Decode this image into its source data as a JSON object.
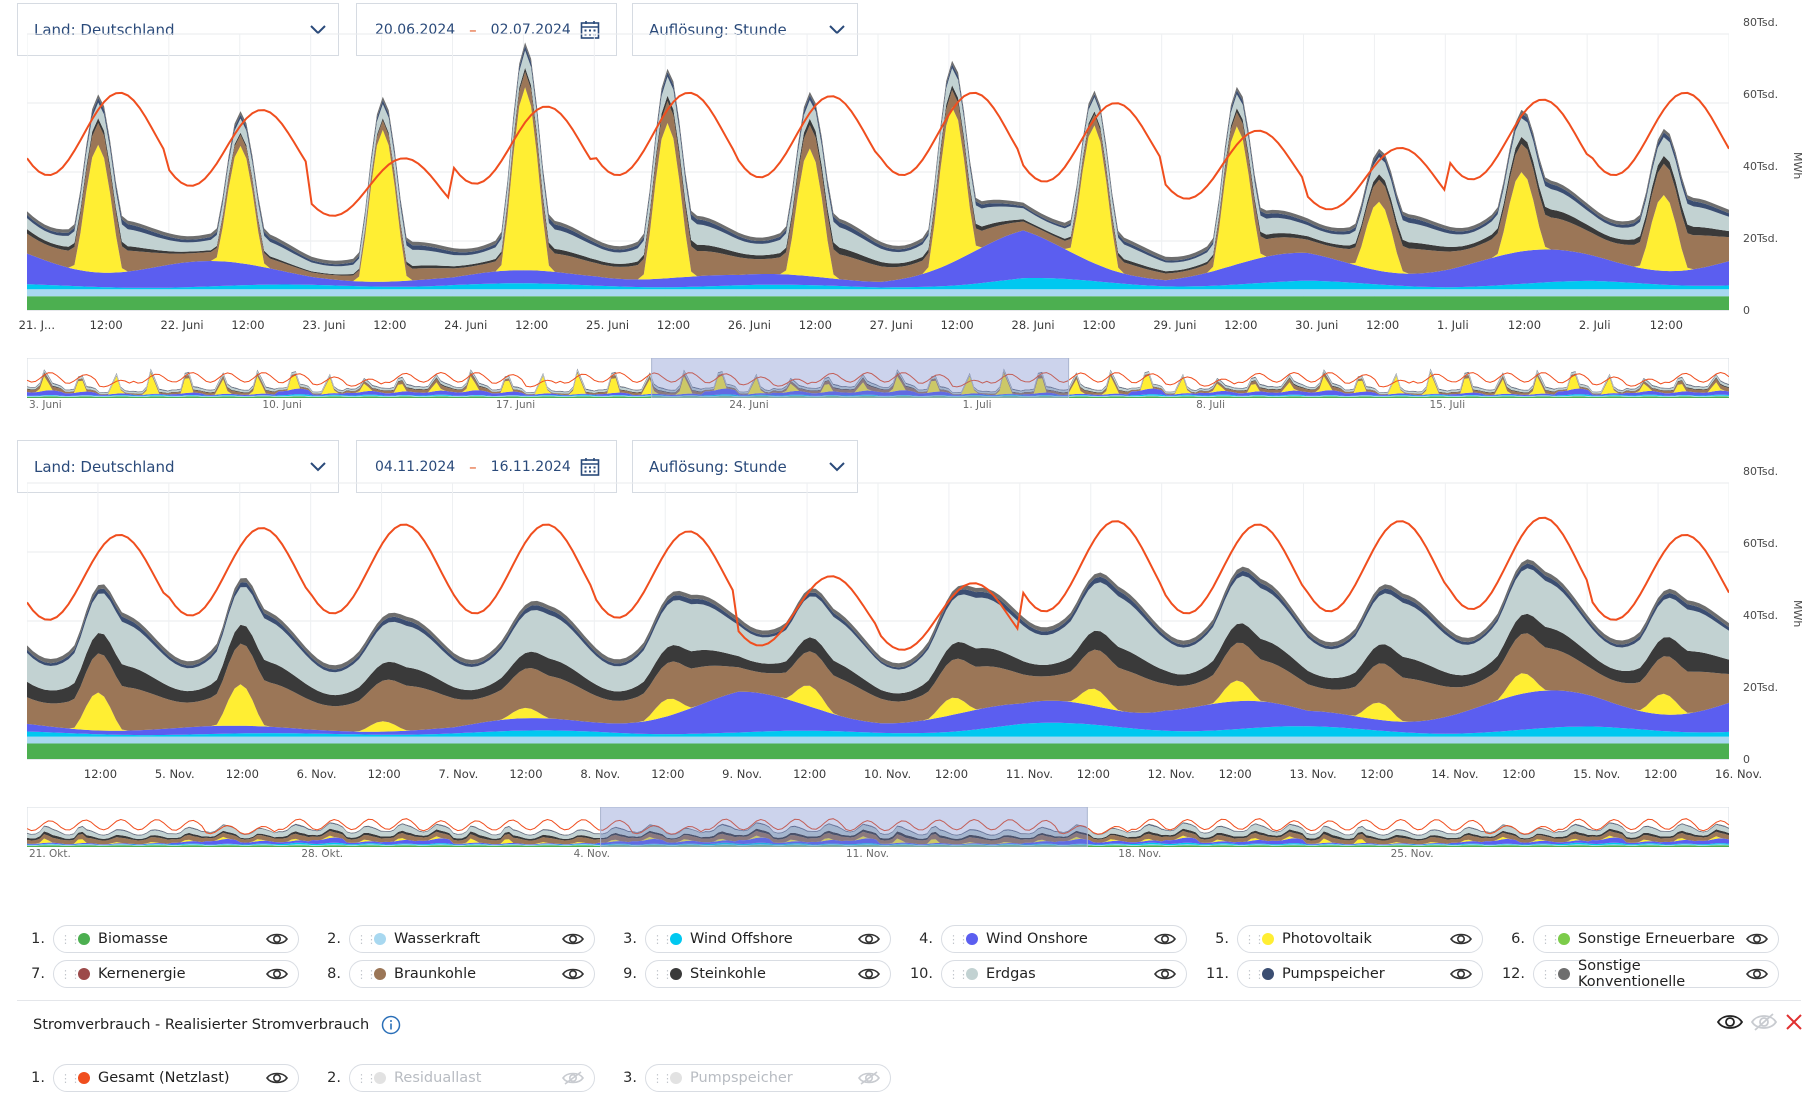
{
  "charts": [
    {
      "country_select": "Land: Deutschland",
      "date_from": "20.06.2024",
      "date_to": "02.07.2024",
      "resolution_select": "Auflösung: Stunde",
      "y_ticks": [
        "80Tsd.",
        "60Tsd.",
        "40Tsd.",
        "20Tsd.",
        "0"
      ],
      "unit": "MWh",
      "x_ticks": [
        "21. J...",
        "12:00",
        "22. Juni",
        "12:00",
        "23. Juni",
        "12:00",
        "24. Juni",
        "12:00",
        "25. Juni",
        "12:00",
        "26. Juni",
        "12:00",
        "27. Juni",
        "12:00",
        "28. Juni",
        "12:00",
        "29. Juni",
        "12:00",
        "30. Juni",
        "12:00",
        "1. Juli",
        "12:00",
        "2. Juli",
        "12:00"
      ],
      "navigator_ticks": [
        "3. Juni",
        "10. Juni",
        "17. Juni",
        "24. Juni",
        "1. Juli",
        "8. Juli",
        "15. Juli"
      ]
    },
    {
      "country_select": "Land: Deutschland",
      "date_from": "04.11.2024",
      "date_to": "16.11.2024",
      "resolution_select": "Auflösung: Stunde",
      "y_ticks": [
        "80Tsd.",
        "60Tsd.",
        "40Tsd.",
        "20Tsd.",
        "0"
      ],
      "unit": "MWh",
      "x_ticks": [
        "12:00",
        "5. Nov.",
        "12:00",
        "6. Nov.",
        "12:00",
        "7. Nov.",
        "12:00",
        "8. Nov.",
        "12:00",
        "9. Nov.",
        "12:00",
        "10. Nov.",
        "12:00",
        "11. Nov.",
        "12:00",
        "12. Nov.",
        "12:00",
        "13. Nov.",
        "12:00",
        "14. Nov.",
        "12:00",
        "15. Nov.",
        "12:00",
        "16. Nov."
      ],
      "navigator_ticks": [
        "21. Okt.",
        "28. Okt.",
        "4. Nov.",
        "11. Nov.",
        "18. Nov.",
        "25. Nov."
      ]
    }
  ],
  "chart_data": [
    {
      "type": "area",
      "stacked": true,
      "x_range": [
        "20.06.2024",
        "02.07.2024"
      ],
      "ylim": [
        0,
        80000
      ],
      "ylabel": "MWh",
      "grid": true,
      "days": [
        "21.06.",
        "22.06.",
        "23.06.",
        "24.06.",
        "25.06.",
        "26.06.",
        "27.06.",
        "28.06.",
        "29.06.",
        "30.06.",
        "01.07.",
        "02.07."
      ],
      "series_approx_daily_noon_values": [
        {
          "name": "Biomasse",
          "values": [
            4000,
            4000,
            4000,
            4000,
            4000,
            4000,
            4000,
            4000,
            4000,
            4000,
            4000,
            4000
          ]
        },
        {
          "name": "Wasserkraft",
          "values": [
            2000,
            2000,
            2000,
            2000,
            2000,
            2000,
            2000,
            2000,
            2000,
            2000,
            2000,
            2000
          ]
        },
        {
          "name": "Wind Offshore",
          "values": [
            1500,
            1000,
            1500,
            2000,
            1500,
            1500,
            1000,
            3500,
            2000,
            2500,
            1500,
            2500
          ]
        },
        {
          "name": "Wind Onshore",
          "values": [
            12000,
            9000,
            4000,
            2500,
            6000,
            3000,
            4000,
            14000,
            4000,
            9000,
            9000,
            10000
          ]
        },
        {
          "name": "Photovoltaik",
          "values": [
            37000,
            34000,
            44000,
            53000,
            45000,
            37000,
            45000,
            40000,
            40000,
            20000,
            23000,
            22000
          ]
        },
        {
          "name": "Braunkohle",
          "values": [
            9000,
            5000,
            2000,
            4000,
            6000,
            8000,
            7000,
            4000,
            3000,
            6000,
            8000,
            10000
          ]
        },
        {
          "name": "Steinkohle",
          "values": [
            2000,
            1000,
            500,
            1000,
            1500,
            2000,
            2000,
            1000,
            1000,
            1500,
            2000,
            2500
          ]
        },
        {
          "name": "Erdgas",
          "values": [
            5000,
            5000,
            4000,
            5000,
            6000,
            6000,
            6000,
            5000,
            4000,
            5000,
            6000,
            6000
          ]
        },
        {
          "name": "Pumpspeicher",
          "values": [
            1500,
            1500,
            1000,
            1500,
            1500,
            1500,
            1500,
            1000,
            1000,
            1500,
            1500,
            1500
          ]
        },
        {
          "name": "Sonstige Konventionelle",
          "values": [
            1000,
            1000,
            1000,
            1000,
            1000,
            1000,
            1000,
            1000,
            1000,
            1000,
            1000,
            1000
          ]
        }
      ],
      "lines": [
        {
          "name": "Gesamt (Netzlast)",
          "values": [
            63000,
            58000,
            44000,
            59000,
            63000,
            62000,
            63000,
            60000,
            52000,
            47000,
            61000,
            63000
          ]
        }
      ]
    },
    {
      "type": "area",
      "stacked": true,
      "x_range": [
        "04.11.2024",
        "16.11.2024"
      ],
      "ylim": [
        0,
        80000
      ],
      "ylabel": "MWh",
      "grid": true,
      "days": [
        "04.11.",
        "05.11.",
        "06.11.",
        "07.11.",
        "08.11.",
        "09.11.",
        "10.11.",
        "11.11.",
        "12.11.",
        "13.11.",
        "14.11.",
        "15.11."
      ],
      "series_approx_daily_noon_values": [
        {
          "name": "Biomasse",
          "values": [
            4500,
            4500,
            4500,
            4500,
            4500,
            4500,
            4500,
            4500,
            4500,
            4500,
            4500,
            4500
          ]
        },
        {
          "name": "Wasserkraft",
          "values": [
            2000,
            2000,
            2000,
            2000,
            2000,
            2000,
            2000,
            2000,
            2000,
            2000,
            2000,
            2000
          ]
        },
        {
          "name": "Wind Offshore",
          "values": [
            1500,
            1000,
            1000,
            1500,
            2000,
            1500,
            2000,
            4000,
            4000,
            3000,
            2000,
            3000
          ]
        },
        {
          "name": "Wind Onshore",
          "values": [
            3000,
            2500,
            2000,
            2000,
            6000,
            12000,
            7000,
            6000,
            13000,
            5000,
            9000,
            12000
          ]
        },
        {
          "name": "Photovoltaik",
          "values": [
            11000,
            12000,
            3000,
            3000,
            5000,
            6000,
            5000,
            5000,
            6000,
            5000,
            6000,
            6000
          ]
        },
        {
          "name": "Braunkohle",
          "values": [
            12000,
            13000,
            13000,
            13000,
            12000,
            11000,
            11000,
            13000,
            12000,
            12000,
            13000,
            12000
          ]
        },
        {
          "name": "Steinkohle",
          "values": [
            7000,
            6000,
            6000,
            5000,
            5000,
            5000,
            4000,
            6000,
            6000,
            6000,
            6000,
            6000
          ]
        },
        {
          "name": "Erdgas",
          "values": [
            13000,
            12000,
            12000,
            12000,
            13000,
            14000,
            12000,
            16000,
            14000,
            15000,
            16000,
            12000
          ]
        },
        {
          "name": "Pumpspeicher",
          "values": [
            1500,
            1500,
            1500,
            1500,
            1500,
            1500,
            1000,
            2000,
            1500,
            1500,
            1500,
            1500
          ]
        },
        {
          "name": "Sonstige Konventionelle",
          "values": [
            1200,
            1200,
            1200,
            1200,
            1200,
            1200,
            1200,
            1200,
            1200,
            1200,
            1200,
            1200
          ]
        }
      ],
      "lines": [
        {
          "name": "Gesamt (Netzlast)",
          "values": [
            65000,
            67000,
            68000,
            68000,
            66000,
            53000,
            51000,
            69000,
            68000,
            69000,
            70000,
            65000
          ]
        }
      ]
    }
  ],
  "legend": [
    {
      "num": "1.",
      "label": "Biomasse",
      "color": "#4caf50"
    },
    {
      "num": "2.",
      "label": "Wasserkraft",
      "color": "#a8d8f0"
    },
    {
      "num": "3.",
      "label": "Wind Offshore",
      "color": "#00c8f0"
    },
    {
      "num": "4.",
      "label": "Wind Onshore",
      "color": "#5b5ef0"
    },
    {
      "num": "5.",
      "label": "Photovoltaik",
      "color": "#ffee33"
    },
    {
      "num": "6.",
      "label": "Sonstige Erneuerbare",
      "color": "#7ccc4a"
    },
    {
      "num": "7.",
      "label": "Kernenergie",
      "color": "#9c4a4a"
    },
    {
      "num": "8.",
      "label": "Braunkohle",
      "color": "#9b7657"
    },
    {
      "num": "9.",
      "label": "Steinkohle",
      "color": "#3a3a3a"
    },
    {
      "num": "10.",
      "label": "Erdgas",
      "color": "#c2d2d2"
    },
    {
      "num": "11.",
      "label": "Pumpspeicher",
      "color": "#3b4e72"
    },
    {
      "num": "12.",
      "label": "Sonstige Konventionelle",
      "color": "#6e6e6e"
    }
  ],
  "consumption_title": "Stromverbrauch - Realisierter Stromverbrauch",
  "consumption": [
    {
      "num": "1.",
      "label": "Gesamt (Netzlast)",
      "color": "#f04e1e",
      "active": true
    },
    {
      "num": "2.",
      "label": "Residuallast",
      "color": "#e2e2e2",
      "active": false
    },
    {
      "num": "3.",
      "label": "Pumpspeicher",
      "color": "#e2e2e2",
      "active": false
    }
  ]
}
